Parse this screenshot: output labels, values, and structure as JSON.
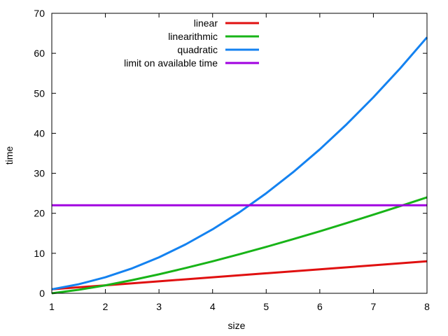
{
  "chart_data": {
    "type": "line",
    "title": "",
    "xlabel": "size",
    "ylabel": "time",
    "xlim": [
      1,
      8
    ],
    "ylim": [
      0,
      70
    ],
    "xticks": [
      1,
      2,
      3,
      4,
      5,
      6,
      7,
      8
    ],
    "yticks": [
      0,
      10,
      20,
      30,
      40,
      50,
      60,
      70
    ],
    "grid": false,
    "legend_position": "top-center",
    "series": [
      {
        "name": "linear",
        "color": "#e01010",
        "x": [
          1,
          2,
          3,
          4,
          5,
          6,
          7,
          8
        ],
        "y": [
          1,
          2,
          3,
          4,
          5,
          6,
          7,
          8
        ]
      },
      {
        "name": "linearithmic",
        "color": "#18b418",
        "x": [
          1,
          1.5,
          2,
          2.5,
          3,
          3.5,
          4,
          4.5,
          5,
          5.5,
          6,
          6.5,
          7,
          7.5,
          8
        ],
        "y": [
          0,
          0.88,
          2.0,
          3.31,
          4.75,
          6.33,
          8.0,
          9.77,
          11.61,
          13.53,
          15.51,
          17.55,
          19.65,
          21.8,
          24.0
        ]
      },
      {
        "name": "quadratic",
        "color": "#1482f0",
        "x": [
          1,
          1.5,
          2,
          2.5,
          3,
          3.5,
          4,
          4.5,
          5,
          5.5,
          6,
          6.5,
          7,
          7.5,
          8
        ],
        "y": [
          1,
          2.25,
          4,
          6.25,
          9,
          12.25,
          16,
          20.25,
          25,
          30.25,
          36,
          42.25,
          49,
          56.25,
          64
        ]
      },
      {
        "name": "limit on available time",
        "color": "#a000e0",
        "x": [
          1,
          8
        ],
        "y": [
          22,
          22
        ]
      }
    ]
  }
}
